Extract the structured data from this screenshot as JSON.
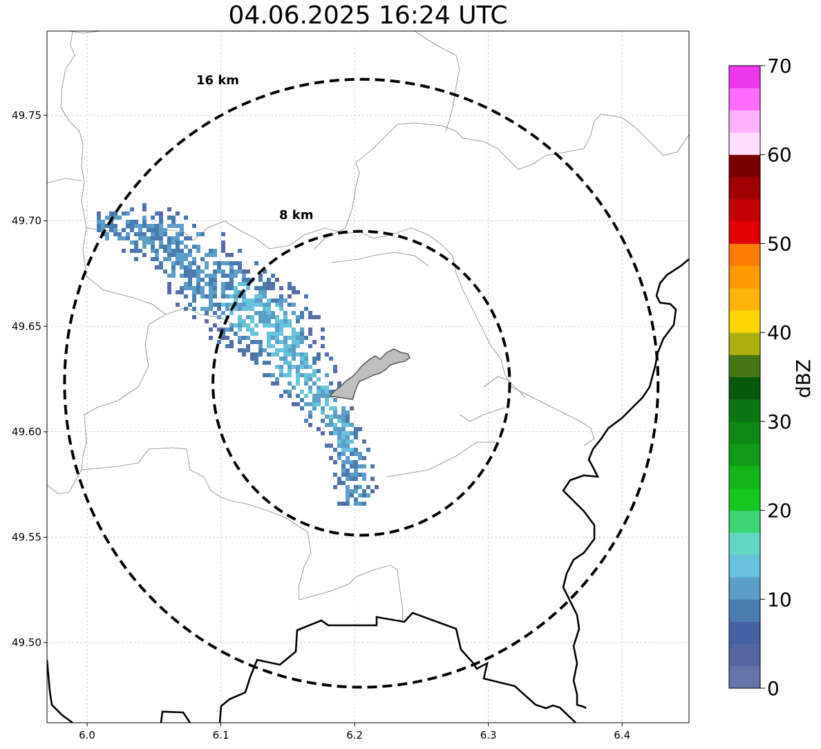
{
  "title": "04.06.2025 16:24 UTC",
  "map": {
    "lon_range": [
      5.97,
      6.45
    ],
    "lat_range": [
      49.462,
      49.79
    ],
    "x_ticks": [
      "6.0",
      "6.1",
      "6.2",
      "6.3",
      "6.4"
    ],
    "x_tick_values": [
      6.0,
      6.1,
      6.2,
      6.3,
      6.4
    ],
    "y_ticks": [
      "49.50",
      "49.55",
      "49.60",
      "49.65",
      "49.70",
      "49.75"
    ],
    "y_tick_values": [
      49.5,
      49.55,
      49.6,
      49.65,
      49.7,
      49.75
    ],
    "grid": true,
    "radar_center": {
      "lon": 6.205,
      "lat": 49.623
    },
    "rings": [
      {
        "label": "8 km",
        "radius_km": 8
      },
      {
        "label": "16 km",
        "radius_km": 16
      }
    ],
    "highlight_area_color": "#bfbfbf",
    "country_border_color": "#000000",
    "commune_border_color": "#808080"
  },
  "colorbar": {
    "label": "dBZ",
    "ticks": [
      "0",
      "10",
      "20",
      "30",
      "40",
      "50",
      "60",
      "70"
    ],
    "range": [
      0,
      70
    ],
    "step": 2.5,
    "colors": [
      "#6675a8",
      "#5366a1",
      "#4561a4",
      "#4a7cb0",
      "#5c9ec8",
      "#67c2dc",
      "#61d6c4",
      "#3dd675",
      "#16c71f",
      "#13b51b",
      "#119c17",
      "#0e8a14",
      "#0b7612",
      "#06590b",
      "#447713",
      "#adb00c",
      "#fdd600",
      "#fdb308",
      "#fd9b03",
      "#fd7d03",
      "#e10003",
      "#c20002",
      "#a10000",
      "#7a0000",
      "#ffdeff",
      "#ffb3ff",
      "#ff6cff",
      "#ee38ee"
    ]
  },
  "precipitation": {
    "note_colors": [
      "#5a6ca6",
      "#4a7cb0",
      "#5c9ec8",
      "#67c2dc"
    ]
  }
}
